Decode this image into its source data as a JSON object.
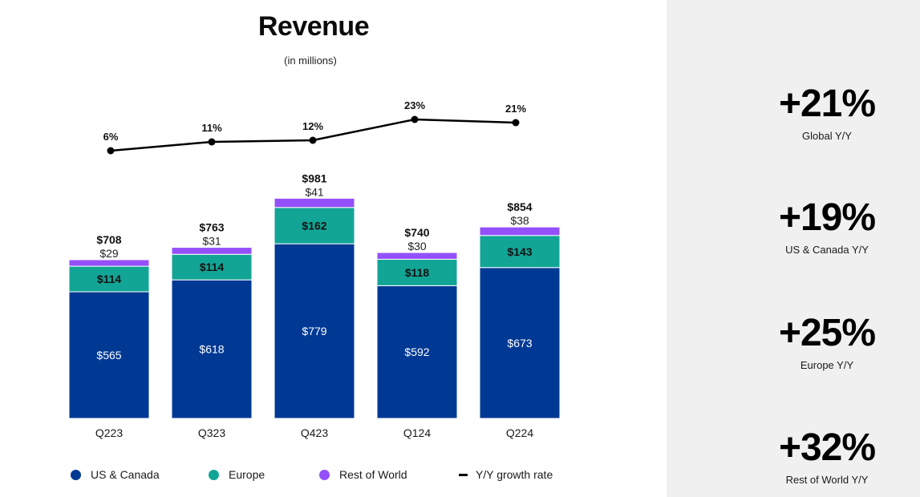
{
  "chart_data": {
    "type": "bar",
    "stacked": true,
    "title": "Revenue",
    "subtitle": "(in millions)",
    "categories": [
      "Q223",
      "Q323",
      "Q423",
      "Q124",
      "Q224"
    ],
    "series": [
      {
        "name": "US & Canada",
        "color": "#003994",
        "values": [
          565,
          618,
          779,
          592,
          673
        ],
        "labels": [
          "$565",
          "$618",
          "$779",
          "$592",
          "$673"
        ]
      },
      {
        "name": "Europe",
        "color": "#12a596",
        "values": [
          114,
          114,
          162,
          118,
          143
        ],
        "labels": [
          "$114",
          "$114",
          "$162",
          "$118",
          "$143"
        ]
      },
      {
        "name": "Rest of World",
        "color": "#9450fa",
        "values": [
          29,
          31,
          41,
          30,
          38
        ],
        "labels": [
          "$29",
          "$31",
          "$41",
          "$30",
          "$38"
        ]
      }
    ],
    "totals": [
      708,
      763,
      981,
      740,
      854
    ],
    "total_labels": [
      "$708",
      "$763",
      "$981",
      "$740",
      "$854"
    ],
    "line_series": {
      "name": "Y/Y growth rate",
      "color": "#000000",
      "values": [
        6,
        11,
        12,
        23,
        21
      ],
      "labels": [
        "6%",
        "11%",
        "12%",
        "23%",
        "21%"
      ]
    },
    "xlabel": "",
    "ylabel": "",
    "ylim": [
      0,
      1000
    ],
    "grid": false,
    "legend_position": "bottom"
  },
  "legend": [
    {
      "label": "US & Canada",
      "color": "#003994",
      "type": "dot"
    },
    {
      "label": "Europe",
      "color": "#12a596",
      "type": "dot"
    },
    {
      "label": "Rest of World",
      "color": "#9450fa",
      "type": "dot"
    },
    {
      "label": "Y/Y growth rate",
      "color": "#000000",
      "type": "dash"
    }
  ],
  "kpis": [
    {
      "value": "+21%",
      "label": "Global Y/Y"
    },
    {
      "value": "+19%",
      "label": "US & Canada Y/Y"
    },
    {
      "value": "+25%",
      "label": "Europe Y/Y"
    },
    {
      "value": "+32%",
      "label": "Rest of World Y/Y"
    }
  ]
}
